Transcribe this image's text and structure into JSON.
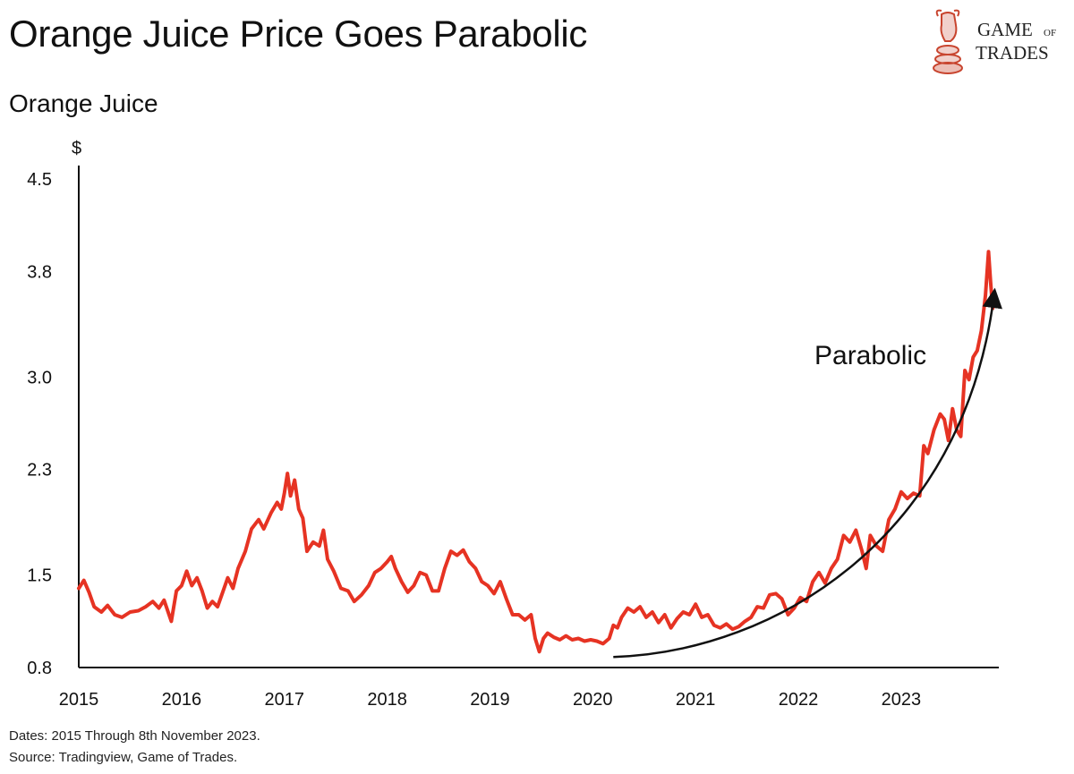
{
  "title": "Orange Juice Price Goes Parabolic",
  "subtitle": "Orange Juice",
  "logo": {
    "line1": "Game",
    "line1_small": "of",
    "line2": "Trades",
    "icon": "bull-chess-knight-icon",
    "color": "#c8442e"
  },
  "footnotes": [
    "Dates: 2015 Through 8th November 2023.",
    "Source: Tradingview, Game of Trades."
  ],
  "chart_data": {
    "type": "line",
    "title": "Orange Juice",
    "ylabel": "$",
    "ylim": [
      0.8,
      4.5
    ],
    "xlim": [
      2015,
      2023.95
    ],
    "yticks": [
      "0.8",
      "1.5",
      "2.3",
      "3.0",
      "3.8",
      "4.5"
    ],
    "xticks": [
      "2015",
      "2016",
      "2017",
      "2018",
      "2019",
      "2020",
      "2021",
      "2022",
      "2023"
    ],
    "annotation": {
      "text": "Parabolic",
      "arrow": "upward curved arrow from 2020.2 to 2023.9"
    },
    "series": [
      {
        "color": "#e63323",
        "points": [
          [
            2015.0,
            1.4
          ],
          [
            2015.05,
            1.46
          ],
          [
            2015.1,
            1.37
          ],
          [
            2015.15,
            1.26
          ],
          [
            2015.22,
            1.22
          ],
          [
            2015.28,
            1.27
          ],
          [
            2015.35,
            1.2
          ],
          [
            2015.42,
            1.18
          ],
          [
            2015.5,
            1.22
          ],
          [
            2015.58,
            1.23
          ],
          [
            2015.65,
            1.26
          ],
          [
            2015.72,
            1.3
          ],
          [
            2015.78,
            1.25
          ],
          [
            2015.83,
            1.31
          ],
          [
            2015.9,
            1.15
          ],
          [
            2015.95,
            1.38
          ],
          [
            2016.0,
            1.42
          ],
          [
            2016.05,
            1.53
          ],
          [
            2016.1,
            1.42
          ],
          [
            2016.15,
            1.48
          ],
          [
            2016.2,
            1.38
          ],
          [
            2016.25,
            1.25
          ],
          [
            2016.3,
            1.3
          ],
          [
            2016.35,
            1.26
          ],
          [
            2016.4,
            1.37
          ],
          [
            2016.45,
            1.48
          ],
          [
            2016.5,
            1.4
          ],
          [
            2016.55,
            1.55
          ],
          [
            2016.62,
            1.68
          ],
          [
            2016.68,
            1.85
          ],
          [
            2016.75,
            1.92
          ],
          [
            2016.8,
            1.85
          ],
          [
            2016.87,
            1.97
          ],
          [
            2016.93,
            2.05
          ],
          [
            2016.97,
            2.0
          ],
          [
            2017.0,
            2.12
          ],
          [
            2017.03,
            2.27
          ],
          [
            2017.06,
            2.1
          ],
          [
            2017.1,
            2.22
          ],
          [
            2017.14,
            2.0
          ],
          [
            2017.18,
            1.93
          ],
          [
            2017.22,
            1.68
          ],
          [
            2017.28,
            1.75
          ],
          [
            2017.34,
            1.72
          ],
          [
            2017.38,
            1.84
          ],
          [
            2017.42,
            1.62
          ],
          [
            2017.48,
            1.53
          ],
          [
            2017.55,
            1.4
          ],
          [
            2017.62,
            1.38
          ],
          [
            2017.68,
            1.3
          ],
          [
            2017.75,
            1.35
          ],
          [
            2017.82,
            1.42
          ],
          [
            2017.88,
            1.52
          ],
          [
            2017.94,
            1.55
          ],
          [
            2018.0,
            1.6
          ],
          [
            2018.04,
            1.64
          ],
          [
            2018.08,
            1.55
          ],
          [
            2018.14,
            1.45
          ],
          [
            2018.2,
            1.37
          ],
          [
            2018.26,
            1.42
          ],
          [
            2018.32,
            1.52
          ],
          [
            2018.38,
            1.5
          ],
          [
            2018.44,
            1.38
          ],
          [
            2018.5,
            1.38
          ],
          [
            2018.56,
            1.55
          ],
          [
            2018.62,
            1.68
          ],
          [
            2018.68,
            1.65
          ],
          [
            2018.74,
            1.69
          ],
          [
            2018.8,
            1.6
          ],
          [
            2018.86,
            1.55
          ],
          [
            2018.92,
            1.45
          ],
          [
            2018.98,
            1.42
          ],
          [
            2019.04,
            1.36
          ],
          [
            2019.1,
            1.45
          ],
          [
            2019.16,
            1.32
          ],
          [
            2019.22,
            1.2
          ],
          [
            2019.28,
            1.2
          ],
          [
            2019.34,
            1.16
          ],
          [
            2019.4,
            1.2
          ],
          [
            2019.44,
            1.02
          ],
          [
            2019.48,
            0.92
          ],
          [
            2019.52,
            1.02
          ],
          [
            2019.56,
            1.06
          ],
          [
            2019.62,
            1.03
          ],
          [
            2019.68,
            1.01
          ],
          [
            2019.74,
            1.04
          ],
          [
            2019.8,
            1.01
          ],
          [
            2019.86,
            1.02
          ],
          [
            2019.92,
            1.0
          ],
          [
            2019.98,
            1.01
          ],
          [
            2020.04,
            1.0
          ],
          [
            2020.1,
            0.98
          ],
          [
            2020.16,
            1.02
          ],
          [
            2020.2,
            1.12
          ],
          [
            2020.24,
            1.1
          ],
          [
            2020.28,
            1.18
          ],
          [
            2020.34,
            1.25
          ],
          [
            2020.4,
            1.22
          ],
          [
            2020.46,
            1.26
          ],
          [
            2020.52,
            1.18
          ],
          [
            2020.58,
            1.22
          ],
          [
            2020.64,
            1.14
          ],
          [
            2020.7,
            1.2
          ],
          [
            2020.76,
            1.1
          ],
          [
            2020.82,
            1.17
          ],
          [
            2020.88,
            1.22
          ],
          [
            2020.94,
            1.2
          ],
          [
            2021.0,
            1.28
          ],
          [
            2021.06,
            1.18
          ],
          [
            2021.12,
            1.2
          ],
          [
            2021.18,
            1.12
          ],
          [
            2021.24,
            1.1
          ],
          [
            2021.3,
            1.13
          ],
          [
            2021.36,
            1.09
          ],
          [
            2021.42,
            1.11
          ],
          [
            2021.48,
            1.15
          ],
          [
            2021.54,
            1.18
          ],
          [
            2021.6,
            1.26
          ],
          [
            2021.66,
            1.25
          ],
          [
            2021.72,
            1.35
          ],
          [
            2021.78,
            1.36
          ],
          [
            2021.84,
            1.32
          ],
          [
            2021.9,
            1.2
          ],
          [
            2021.96,
            1.25
          ],
          [
            2022.02,
            1.33
          ],
          [
            2022.08,
            1.3
          ],
          [
            2022.14,
            1.45
          ],
          [
            2022.2,
            1.52
          ],
          [
            2022.26,
            1.44
          ],
          [
            2022.32,
            1.55
          ],
          [
            2022.38,
            1.62
          ],
          [
            2022.44,
            1.8
          ],
          [
            2022.5,
            1.75
          ],
          [
            2022.56,
            1.84
          ],
          [
            2022.62,
            1.68
          ],
          [
            2022.66,
            1.55
          ],
          [
            2022.7,
            1.8
          ],
          [
            2022.76,
            1.72
          ],
          [
            2022.82,
            1.68
          ],
          [
            2022.88,
            1.92
          ],
          [
            2022.94,
            2.0
          ],
          [
            2023.0,
            2.13
          ],
          [
            2023.06,
            2.08
          ],
          [
            2023.12,
            2.12
          ],
          [
            2023.18,
            2.1
          ],
          [
            2023.22,
            2.48
          ],
          [
            2023.26,
            2.42
          ],
          [
            2023.32,
            2.6
          ],
          [
            2023.38,
            2.72
          ],
          [
            2023.42,
            2.68
          ],
          [
            2023.46,
            2.52
          ],
          [
            2023.5,
            2.76
          ],
          [
            2023.54,
            2.6
          ],
          [
            2023.58,
            2.55
          ],
          [
            2023.62,
            3.05
          ],
          [
            2023.66,
            2.98
          ],
          [
            2023.7,
            3.15
          ],
          [
            2023.74,
            3.2
          ],
          [
            2023.78,
            3.35
          ],
          [
            2023.82,
            3.62
          ],
          [
            2023.85,
            3.95
          ],
          [
            2023.87,
            3.72
          ],
          [
            2023.89,
            3.52
          ]
        ]
      }
    ]
  }
}
